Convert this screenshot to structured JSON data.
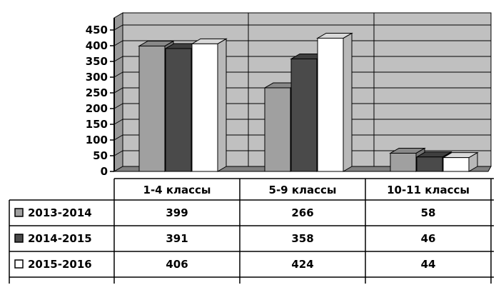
{
  "chart_data": {
    "type": "bar",
    "style": "3d-clustered-column",
    "categories": [
      "1-4 классы",
      "5-9 классы",
      "10-11 классы"
    ],
    "series": [
      {
        "name": "2013-2014",
        "values": [
          399,
          266,
          58
        ],
        "color": "#a0a0a0",
        "legend_marker": "gray-square-icon"
      },
      {
        "name": "2014-2015",
        "values": [
          391,
          358,
          46
        ],
        "color": "#4a4a4a",
        "legend_marker": "dark-square-icon"
      },
      {
        "name": "2015-2016",
        "values": [
          406,
          424,
          44
        ],
        "color": "#ffffff",
        "legend_marker": "white-square-icon"
      }
    ],
    "y_ticks": [
      "0",
      "50",
      "100",
      "150",
      "200",
      "250",
      "300",
      "350",
      "400",
      "450"
    ],
    "ylim": [
      0,
      450
    ],
    "grid": true,
    "legend_placement": "data-table-left",
    "plot_background": "#c0c0c0",
    "title": "",
    "xlabel": "",
    "ylabel": ""
  }
}
